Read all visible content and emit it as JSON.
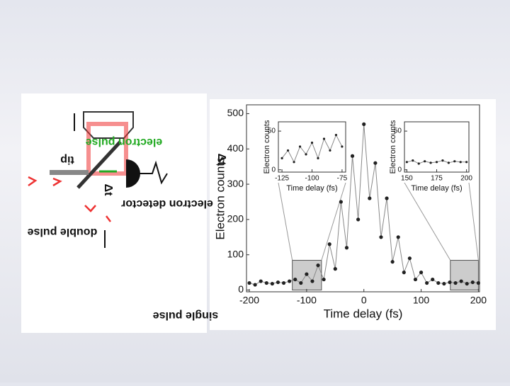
{
  "chart_data": [
    {
      "type": "scatter",
      "ylabel": "Electron counts",
      "xlabel": "Time delay (fs)",
      "color": "#222222",
      "x": [
        -200,
        -190,
        -180,
        -170,
        -160,
        -150,
        -140,
        -130,
        -120,
        -110,
        -100,
        -90,
        -80,
        -70,
        -60,
        -50,
        -40,
        -30,
        -20,
        -10,
        0,
        10,
        20,
        30,
        40,
        50,
        60,
        70,
        80,
        90,
        100,
        110,
        120,
        130,
        140,
        150,
        160,
        170,
        180,
        190,
        200
      ],
      "values": [
        20,
        15,
        25,
        20,
        18,
        22,
        20,
        25,
        30,
        20,
        45,
        25,
        70,
        30,
        130,
        60,
        250,
        120,
        380,
        200,
        470,
        260,
        360,
        150,
        260,
        80,
        150,
        50,
        90,
        30,
        50,
        20,
        30,
        20,
        18,
        22,
        20,
        25,
        18,
        22,
        20
      ],
      "xlim": [
        -205,
        202
      ],
      "ylim": [
        -5,
        525
      ],
      "xticks": [
        -200,
        -100,
        0,
        100,
        200
      ],
      "yticks": [
        0,
        100,
        200,
        300,
        400,
        500
      ]
    },
    {
      "type": "scatter",
      "ylabel": "Electron counts",
      "xlabel": "Time delay (fs)",
      "color": "#222222",
      "x": [
        -125,
        -120,
        -115,
        -110,
        -105,
        -100,
        -95,
        -90,
        -85,
        -80,
        -75
      ],
      "values": [
        15,
        25,
        10,
        30,
        20,
        35,
        15,
        40,
        25,
        45,
        30
      ],
      "xlim": [
        -128,
        -72
      ],
      "ylim": [
        -3,
        62
      ],
      "xticks": [
        -125,
        -100,
        -75
      ],
      "yticks": [
        0,
        50
      ]
    },
    {
      "type": "scatter",
      "ylabel": "Electron counts",
      "xlabel": "Time delay (fs)",
      "color": "#222222",
      "x": [
        150,
        155,
        160,
        165,
        170,
        175,
        180,
        185,
        190,
        195,
        200
      ],
      "values": [
        10,
        12,
        8,
        11,
        9,
        10,
        12,
        9,
        11,
        10,
        10
      ],
      "xlim": [
        148,
        202
      ],
      "ylim": [
        -3,
        62
      ],
      "xticks": [
        150,
        175,
        200
      ],
      "yticks": [
        0,
        50
      ]
    }
  ],
  "diagram": {
    "single_pulse": "single pulse",
    "double_pulse": "double pulse",
    "detector": "electron detector",
    "tip": "tip",
    "electron_pulse": "electron pulse",
    "delay": "Δt",
    "delay2": "Δt"
  }
}
